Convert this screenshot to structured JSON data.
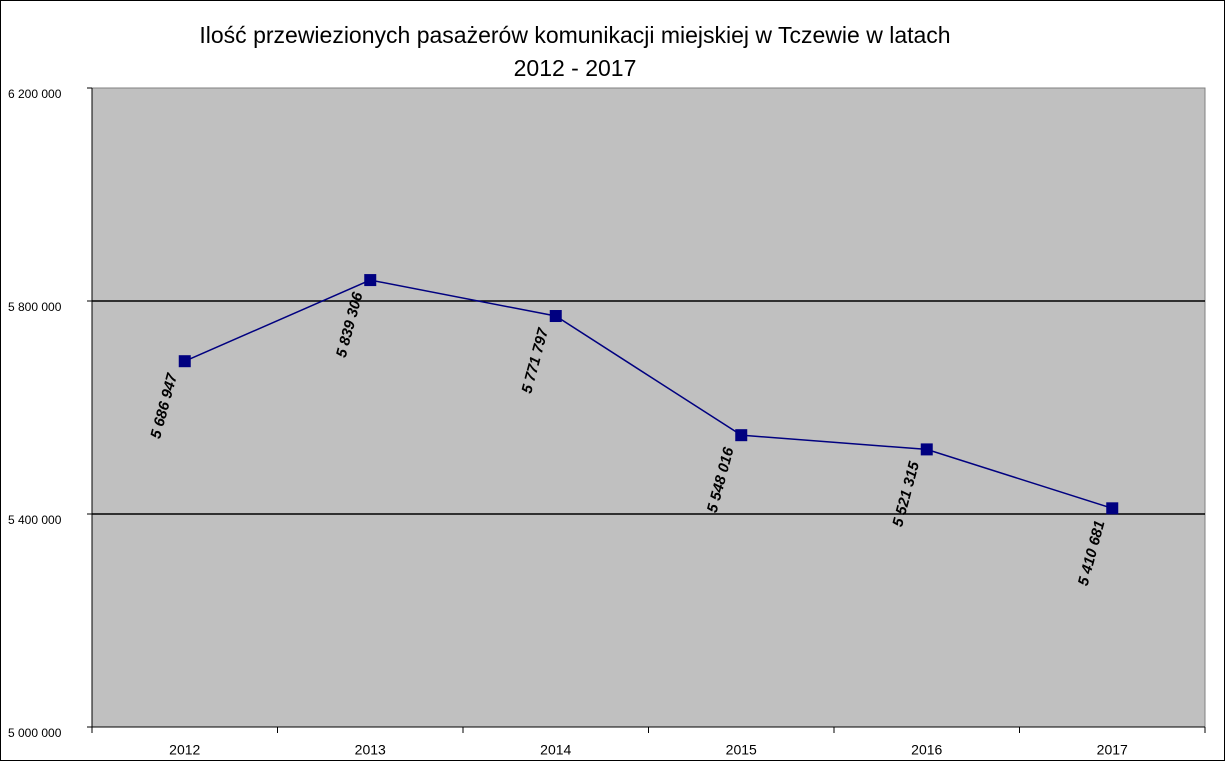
{
  "chart_data": {
    "type": "line",
    "title": [
      "Ilość przewiezionych pasażerów komunikacji miejskiej w Tczewie w latach",
      "2012 - 2017"
    ],
    "categories": [
      "2012",
      "2013",
      "2014",
      "2015",
      "2016",
      "2017"
    ],
    "series": [
      {
        "name": "Pasażerowie",
        "color": "#000080",
        "values": [
          5686947,
          5839306,
          5771797,
          5548016,
          5521315,
          5410681
        ],
        "value_labels": [
          "5 686 947",
          "5 839 306",
          "5 771 797",
          "5 548 016",
          "5 521 315",
          "5 410 681"
        ]
      }
    ],
    "ylim": [
      5000000,
      6200000
    ],
    "yticks": [
      {
        "value": 5000000,
        "label": "5 000 000"
      },
      {
        "value": 5400000,
        "label": "5 400 000"
      },
      {
        "value": 5800000,
        "label": "5 800 000"
      },
      {
        "value": 6200000,
        "label": "6 200 000"
      }
    ],
    "grid": true,
    "plot_background": "#c0c0c0"
  }
}
